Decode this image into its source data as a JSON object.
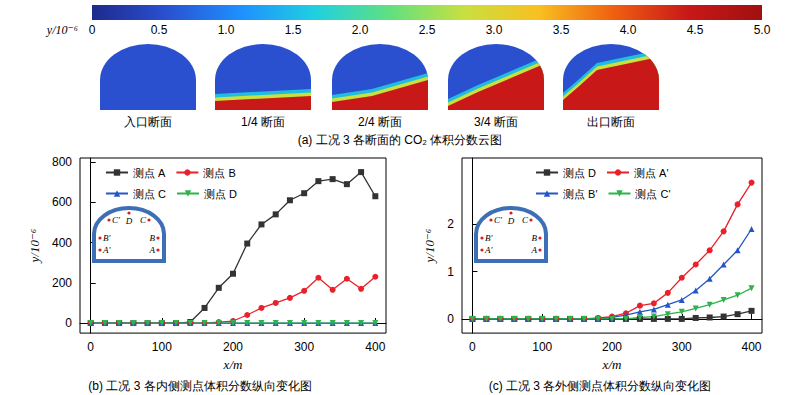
{
  "colorbar": {
    "label": "y/10⁻⁶",
    "range": [
      0,
      5
    ],
    "ticks": [
      0,
      0.5,
      {
        "value": 1,
        "label": "1.0"
      },
      1.5,
      {
        "value": 2,
        "label": "2.0"
      },
      2.5,
      {
        "value": 3,
        "label": "3.0"
      },
      3.5,
      {
        "value": 4,
        "label": "4.0"
      },
      4.5,
      {
        "value": 5,
        "label": "5.0"
      }
    ],
    "colors": [
      "#1e2a8c",
      "#2a50d0",
      "#1e90ff",
      "#20d0e0",
      "#60e080",
      "#c8e040",
      "#f8c020",
      "#f06010",
      "#c81818",
      "#a01010"
    ]
  },
  "sections": {
    "title": "(a) 工况 3 各断面的 CO₂ 体积分数云图",
    "labels": [
      "入口断面",
      "1/4 断面",
      "2/4 断面",
      "3/4 断面",
      "出口断面"
    ]
  },
  "chart_data": [
    {
      "type": "line",
      "title": "(b) 工况 3 各内侧测点体积分数纵向变化图",
      "xlabel": "x/m",
      "ylabel": "y/10⁻⁶",
      "x": [
        0,
        20,
        40,
        60,
        80,
        100,
        120,
        140,
        160,
        180,
        200,
        220,
        240,
        260,
        280,
        300,
        320,
        340,
        360,
        380,
        400
      ],
      "series": [
        {
          "name": "测点 A",
          "color": "#333333",
          "marker": "square",
          "values": [
            0,
            0,
            0,
            0,
            0,
            0,
            0,
            5,
            75,
            175,
            245,
            395,
            490,
            540,
            610,
            645,
            705,
            715,
            690,
            750,
            630
          ]
        },
        {
          "name": "测点 B",
          "color": "#e8212a",
          "marker": "circle",
          "values": [
            0,
            0,
            0,
            0,
            0,
            0,
            0,
            0,
            0,
            5,
            10,
            40,
            75,
            100,
            125,
            160,
            225,
            165,
            220,
            170,
            230
          ]
        },
        {
          "name": "测点 C",
          "color": "#2456c8",
          "marker": "triangle",
          "values": [
            0,
            0,
            0,
            0,
            0,
            0,
            0,
            0,
            0,
            0,
            0,
            0,
            0,
            0,
            0,
            0,
            0,
            0,
            0,
            0,
            0
          ]
        },
        {
          "name": "测点 D",
          "color": "#2db34a",
          "marker": "triangle_down",
          "values": [
            0,
            0,
            0,
            0,
            0,
            0,
            0,
            0,
            0,
            0,
            0,
            0,
            0,
            0,
            0,
            0,
            0,
            0,
            0,
            0,
            0
          ]
        }
      ],
      "xlim": [
        -15,
        415
      ],
      "xticks": [
        0,
        100,
        200,
        300,
        400
      ],
      "ylim": [
        -50,
        820
      ],
      "yticks": [
        0,
        200,
        400,
        600,
        800
      ],
      "grid": false,
      "legend": "top",
      "annotations": [
        "A",
        "B",
        "C",
        "D",
        "A'",
        "B'",
        "C'"
      ]
    },
    {
      "type": "line",
      "title": "(c) 工况 3 各外侧测点体积分数纵向变化图",
      "xlabel": "x/m",
      "ylabel": "y/10⁻⁶",
      "x": [
        0,
        20,
        40,
        60,
        80,
        100,
        120,
        140,
        160,
        180,
        200,
        220,
        240,
        260,
        280,
        300,
        320,
        340,
        360,
        380,
        400
      ],
      "series": [
        {
          "name": "测点 D",
          "color": "#333333",
          "marker": "square",
          "values": [
            0,
            0,
            0,
            0,
            0,
            0,
            0,
            0,
            0,
            0,
            0,
            0,
            0,
            0,
            0,
            0,
            0.02,
            0.03,
            0.05,
            0.1,
            0.17
          ]
        },
        {
          "name": "测点 A'",
          "color": "#e8212a",
          "marker": "circle",
          "values": [
            0,
            0,
            0,
            0,
            0,
            0,
            0,
            0,
            0,
            0.02,
            0.05,
            0.12,
            0.28,
            0.33,
            0.55,
            0.87,
            1.15,
            1.45,
            1.85,
            2.42,
            2.88
          ]
        },
        {
          "name": "测点 B'",
          "color": "#2456c8",
          "marker": "triangle",
          "values": [
            0,
            0,
            0,
            0,
            0,
            0,
            0,
            0,
            0,
            0,
            0.03,
            0.08,
            0.15,
            0.2,
            0.3,
            0.4,
            0.6,
            0.85,
            1.15,
            1.45,
            1.9
          ]
        },
        {
          "name": "测点 C'",
          "color": "#2db34a",
          "marker": "triangle_down",
          "values": [
            0,
            0,
            0,
            0,
            0,
            0,
            0,
            0,
            0,
            0,
            0,
            0,
            0.03,
            0.05,
            0.1,
            0.15,
            0.22,
            0.3,
            0.4,
            0.5,
            0.65
          ]
        }
      ],
      "xlim": [
        -15,
        415
      ],
      "xticks": [
        0,
        100,
        200,
        300,
        400
      ],
      "ylim": [
        -0.3,
        3.4
      ],
      "yticks": [
        0,
        1,
        2
      ],
      "grid": false,
      "legend": "top",
      "annotations": [
        "A",
        "B",
        "C",
        "D",
        "A'",
        "B'",
        "C'"
      ]
    }
  ]
}
